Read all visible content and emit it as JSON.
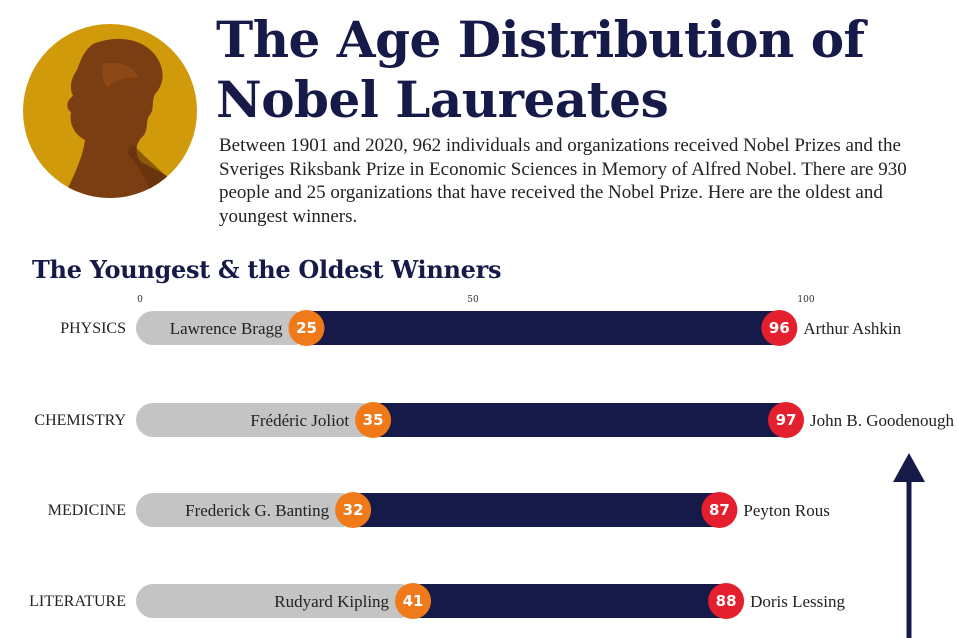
{
  "header": {
    "title": "The Age Distribution of Nobel Laureates",
    "intro": "Between 1901 and 2020, 962 individuals and organizations received Nobel Prizes and the Sveriges Riksbank Prize in Economic Sciences in Memory of Alfred Nobel. There are 930 people and 25 organizations that have received the Nobel Prize. Here are the oldest and youngest winners."
  },
  "colors": {
    "title": "#161a48",
    "bar_dark": "#161a48",
    "bar_grey": "#c4c4c4",
    "youngest_circle": "#f07a1a",
    "oldest_circle": "#e5202e",
    "medal_gold": "#d19a0a",
    "medal_brown": "#7a3e12"
  },
  "chart_data": {
    "type": "range-bar",
    "title": "The Youngest & the Oldest Winners",
    "xticks": [
      0,
      50,
      100
    ],
    "xlim": [
      0,
      100
    ],
    "grey_bar_start": 0,
    "categories": [
      "PHYSICS",
      "CHEMISTRY",
      "MEDICINE",
      "LITERATURE"
    ],
    "youngest": {
      "names": [
        "Lawrence Bragg",
        "Frédéric Joliot",
        "Frederick G. Banting",
        "Rudyard Kipling"
      ],
      "values": [
        25,
        35,
        32,
        41
      ]
    },
    "oldest": {
      "names": [
        "Arthur Ashkin",
        "John B. Goodenough",
        "Peyton Rous",
        "Doris Lessing"
      ],
      "values": [
        96,
        97,
        87,
        88
      ]
    }
  }
}
